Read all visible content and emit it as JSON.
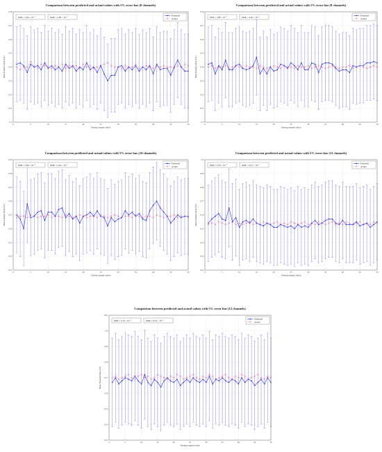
{
  "chart_data": [
    {
      "type": "line",
      "title": "Comparison between predicted and actual values with 5% error bar (8 channels)",
      "xlabel": "Testing sample index",
      "ylabel": "Heat Transfer Rate (W)",
      "xlim": [
        0,
        50
      ],
      "ylim": [
        0.5,
        0.58
      ],
      "xticks": [
        "0",
        "5",
        "10",
        "15",
        "20",
        "25",
        "30",
        "35",
        "40",
        "45",
        "50"
      ],
      "yticks": [
        "0.5",
        "0.51",
        "0.52",
        "0.53",
        "0.54",
        "0.55",
        "0.56",
        "0.57",
        "0.58"
      ],
      "annotations": [
        "MSE = 5.04 × 10⁻⁵",
        "MAE = 5.90 × 10⁻³"
      ],
      "error_bar_pct": 5,
      "series": [
        {
          "name": "Predicted",
          "values": [
            0.542,
            0.543,
            0.541,
            0.536,
            0.542,
            0.54,
            0.541,
            0.538,
            0.543,
            0.539,
            0.541,
            0.538,
            0.54,
            0.537,
            0.542,
            0.539,
            0.541,
            0.537,
            0.54,
            0.538,
            0.543,
            0.538,
            0.54,
            0.536,
            0.541,
            0.535,
            0.53,
            0.534,
            0.534,
            0.54,
            0.541,
            0.537,
            0.54,
            0.538,
            0.541,
            0.537,
            0.54,
            0.538,
            0.541,
            0.535,
            0.542,
            0.538,
            0.539,
            0.539,
            0.534,
            0.54,
            0.545,
            0.54,
            0.537,
            0.537
          ]
        },
        {
          "name": "Actual",
          "values": [
            0.54,
            0.538,
            0.54,
            0.54,
            0.544,
            0.54,
            0.539,
            0.542,
            0.541,
            0.54,
            0.539,
            0.541,
            0.54,
            0.542,
            0.539,
            0.541,
            0.54,
            0.541,
            0.539,
            0.542,
            0.54,
            0.541,
            0.539,
            0.54,
            0.541,
            0.542,
            0.543,
            0.541,
            0.54,
            0.54,
            0.539,
            0.541,
            0.54,
            0.54,
            0.542,
            0.539,
            0.54,
            0.541,
            0.54,
            0.539,
            0.541,
            0.54,
            0.541,
            0.54,
            0.54,
            0.539,
            0.541,
            0.54,
            0.542,
            0.541
          ]
        }
      ]
    },
    {
      "type": "line",
      "title": "Comparison between predicted and actual values with 5% error bar (9 channels)",
      "xlabel": "Testing sample index",
      "ylabel": "Heat Transfer Rate (W)",
      "xlim": [
        0,
        50
      ],
      "ylim": [
        0.5,
        0.58
      ],
      "xticks": [
        "0",
        "5",
        "10",
        "15",
        "20",
        "25",
        "30",
        "35",
        "40",
        "45",
        "50"
      ],
      "yticks": [
        "0.5",
        "0.51",
        "0.52",
        "0.53",
        "0.54",
        "0.55",
        "0.56",
        "0.57",
        "0.58"
      ],
      "annotations": [
        "MSE = 3.88 × 10⁻⁵",
        "MAE = 4.65 × 10⁻³"
      ],
      "error_bar_pct": 5,
      "series": [
        {
          "name": "Predicted",
          "values": [
            0.542,
            0.543,
            0.535,
            0.541,
            0.538,
            0.545,
            0.538,
            0.538,
            0.541,
            0.542,
            0.539,
            0.538,
            0.539,
            0.541,
            0.547,
            0.535,
            0.539,
            0.535,
            0.54,
            0.537,
            0.538,
            0.542,
            0.541,
            0.539,
            0.543,
            0.541,
            0.538,
            0.543,
            0.538,
            0.538,
            0.543,
            0.542,
            0.536,
            0.542,
            0.543,
            0.543,
            0.542,
            0.539,
            0.537,
            0.538,
            0.538,
            0.536,
            0.541,
            0.54,
            0.541,
            0.541,
            0.543,
            0.543,
            0.544,
            0.543
          ]
        },
        {
          "name": "Actual",
          "values": [
            0.54,
            0.541,
            0.539,
            0.54,
            0.54,
            0.541,
            0.539,
            0.54,
            0.541,
            0.54,
            0.539,
            0.541,
            0.54,
            0.54,
            0.539,
            0.541,
            0.54,
            0.539,
            0.54,
            0.541,
            0.54,
            0.539,
            0.541,
            0.54,
            0.54,
            0.539,
            0.541,
            0.54,
            0.54,
            0.541,
            0.539,
            0.54,
            0.541,
            0.54,
            0.539,
            0.54,
            0.541,
            0.54,
            0.539,
            0.54,
            0.54,
            0.541,
            0.539,
            0.54,
            0.541,
            0.54,
            0.539,
            0.54,
            0.541,
            0.54
          ]
        }
      ]
    },
    {
      "type": "line",
      "title": "Comparison between predicted and actual values with 5% error bar (10 channels)",
      "xlabel": "Testing sample index",
      "ylabel": "Heat Transfer Rate (W)",
      "xlim": [
        0,
        50
      ],
      "ylim": [
        0.51,
        0.59
      ],
      "xticks": [
        "0",
        "5",
        "10",
        "15",
        "20",
        "25",
        "30",
        "35",
        "40",
        "45",
        "50"
      ],
      "yticks": [
        "0.51",
        "0.52",
        "0.53",
        "0.54",
        "0.55",
        "0.56",
        "0.57",
        "0.58",
        "0.59"
      ],
      "annotations": [
        "MSE = 3.90 × 10⁻⁵",
        "MAE = 5.24 × 10⁻³"
      ],
      "error_bar_pct": 5,
      "series": [
        {
          "name": "Predicted",
          "values": [
            0.55,
            0.547,
            0.54,
            0.558,
            0.548,
            0.549,
            0.552,
            0.553,
            0.546,
            0.552,
            0.552,
            0.549,
            0.554,
            0.555,
            0.548,
            0.551,
            0.547,
            0.549,
            0.544,
            0.549,
            0.55,
            0.552,
            0.549,
            0.553,
            0.549,
            0.548,
            0.542,
            0.548,
            0.545,
            0.547,
            0.548,
            0.553,
            0.55,
            0.552,
            0.549,
            0.551,
            0.547,
            0.546,
            0.553,
            0.557,
            0.56,
            0.555,
            0.552,
            0.549,
            0.544,
            0.547,
            0.55,
            0.548,
            0.549,
            0.549
          ]
        },
        {
          "name": "Actual",
          "values": [
            0.548,
            0.549,
            0.549,
            0.548,
            0.55,
            0.549,
            0.548,
            0.549,
            0.549,
            0.55,
            0.548,
            0.549,
            0.549,
            0.548,
            0.55,
            0.549,
            0.548,
            0.549,
            0.55,
            0.549,
            0.548,
            0.549,
            0.549,
            0.548,
            0.55,
            0.549,
            0.548,
            0.549,
            0.55,
            0.549,
            0.548,
            0.549,
            0.549,
            0.548,
            0.55,
            0.549,
            0.548,
            0.549,
            0.549,
            0.548,
            0.55,
            0.549,
            0.548,
            0.549,
            0.549,
            0.55,
            0.548,
            0.549,
            0.549,
            0.548
          ]
        }
      ]
    },
    {
      "type": "line",
      "title": "Comparison between predicted and actual values with 5% error bar (11 channels)",
      "xlabel": "Testing sample index",
      "ylabel": "Heat Transfer Rate (W)",
      "xlim": [
        0,
        50
      ],
      "ylim": [
        0.52,
        0.6
      ],
      "xticks": [
        "0",
        "5",
        "10",
        "15",
        "20",
        "25",
        "30",
        "35",
        "40",
        "45",
        "50"
      ],
      "yticks": [
        "0.52",
        "0.53",
        "0.54",
        "0.55",
        "0.56",
        "0.57",
        "0.58",
        "0.59",
        "0.6"
      ],
      "annotations": [
        "MSE = 2.79 × 10⁻⁵",
        "MAE = 4.10 × 10⁻³"
      ],
      "error_bar_pct": 5,
      "series": [
        {
          "name": "Predicted",
          "values": [
            0.554,
            0.557,
            0.559,
            0.561,
            0.557,
            0.556,
            0.565,
            0.555,
            0.558,
            0.551,
            0.555,
            0.556,
            0.554,
            0.557,
            0.554,
            0.553,
            0.552,
            0.554,
            0.553,
            0.551,
            0.551,
            0.553,
            0.552,
            0.551,
            0.552,
            0.55,
            0.553,
            0.551,
            0.552,
            0.551,
            0.554,
            0.556,
            0.553,
            0.554,
            0.556,
            0.557,
            0.557,
            0.554,
            0.553,
            0.556,
            0.553,
            0.553,
            0.553,
            0.555,
            0.552,
            0.553,
            0.554,
            0.551,
            0.553,
            0.555
          ]
        },
        {
          "name": "Actual",
          "values": [
            0.553,
            0.554,
            0.553,
            0.555,
            0.554,
            0.553,
            0.554,
            0.555,
            0.553,
            0.554,
            0.553,
            0.554,
            0.555,
            0.553,
            0.554,
            0.553,
            0.555,
            0.554,
            0.553,
            0.554,
            0.555,
            0.553,
            0.554,
            0.553,
            0.555,
            0.554,
            0.553,
            0.554,
            0.555,
            0.553,
            0.554,
            0.553,
            0.555,
            0.554,
            0.553,
            0.554,
            0.555,
            0.553,
            0.554,
            0.553,
            0.555,
            0.554,
            0.553,
            0.554,
            0.555,
            0.553,
            0.554,
            0.553,
            0.555,
            0.554
          ]
        }
      ]
    },
    {
      "type": "line",
      "title": "Comparison between predicted and actual values with 5% error bar (12 channels)",
      "xlabel": "Testing sample index",
      "ylabel": "Heat Transfer Rate (W)",
      "xlim": [
        0,
        50
      ],
      "ylim": [
        0.53,
        0.61
      ],
      "xticks": [
        "0",
        "5",
        "10",
        "15",
        "20",
        "25",
        "30",
        "35",
        "40",
        "45",
        "50"
      ],
      "yticks": [
        "0.53",
        "0.54",
        "0.55",
        "0.56",
        "0.57",
        "0.58",
        "0.59",
        "0.6",
        "0.61"
      ],
      "annotations": [
        "MSE = 5.14 × 10⁻⁵",
        "MAE = 6.10 × 10⁻³"
      ],
      "error_bar_pct": 5,
      "series": [
        {
          "name": "Predicted",
          "values": [
            0.567,
            0.57,
            0.566,
            0.568,
            0.57,
            0.569,
            0.568,
            0.571,
            0.568,
            0.566,
            0.572,
            0.567,
            0.565,
            0.569,
            0.567,
            0.564,
            0.568,
            0.57,
            0.568,
            0.567,
            0.569,
            0.565,
            0.567,
            0.569,
            0.567,
            0.57,
            0.568,
            0.567,
            0.569,
            0.567,
            0.571,
            0.566,
            0.569,
            0.568,
            0.57,
            0.568,
            0.567,
            0.569,
            0.568,
            0.566,
            0.57,
            0.567,
            0.569,
            0.568,
            0.565,
            0.567,
            0.569,
            0.566,
            0.57,
            0.567
          ]
        },
        {
          "name": "Actual",
          "values": [
            0.57,
            0.571,
            0.569,
            0.57,
            0.571,
            0.572,
            0.57,
            0.569,
            0.571,
            0.572,
            0.57,
            0.571,
            0.569,
            0.57,
            0.572,
            0.571,
            0.57,
            0.569,
            0.571,
            0.57,
            0.572,
            0.571,
            0.569,
            0.57,
            0.571,
            0.572,
            0.57,
            0.569,
            0.571,
            0.57,
            0.572,
            0.571,
            0.569,
            0.57,
            0.571,
            0.572,
            0.57,
            0.569,
            0.571,
            0.57,
            0.572,
            0.571,
            0.569,
            0.57,
            0.571,
            0.572,
            0.57,
            0.569,
            0.571,
            0.57
          ]
        }
      ]
    }
  ],
  "colors": {
    "predicted": "#2626ee",
    "actual": "#ee5577",
    "errorbar": "#8484f4"
  }
}
